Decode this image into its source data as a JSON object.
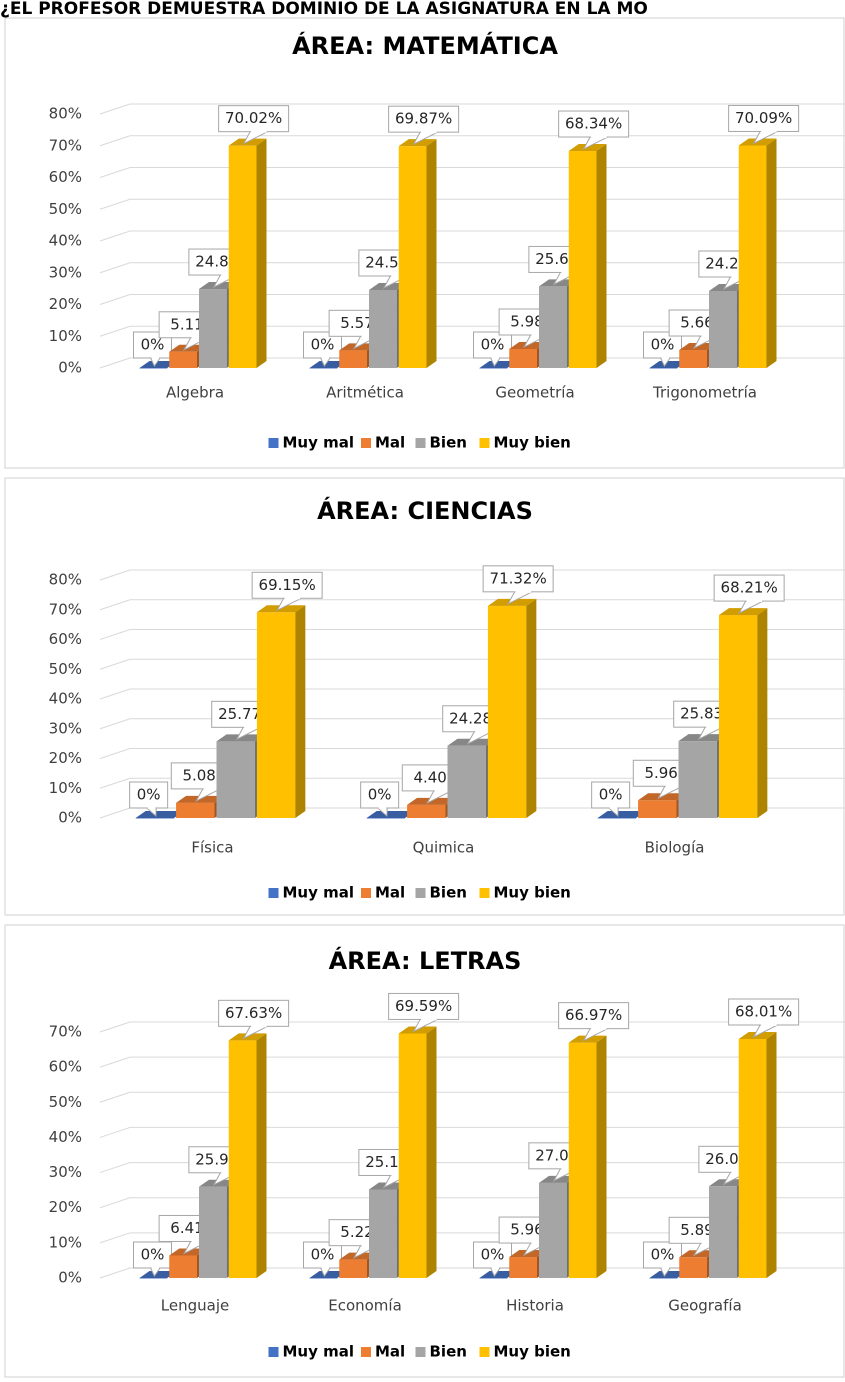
{
  "header": "¿EL PROFESOR DEMUESTRA DOMINIO DE LA ASIGNATURA EN LA MO",
  "chart_data": [
    {
      "type": "bar",
      "title": "ÁREA: MATEMÁTICA",
      "categories": [
        "Algebra",
        "Aritmética",
        "Geometría",
        "Trigonometría"
      ],
      "series": [
        {
          "name": "Muy mal",
          "color": "#4472c4",
          "values": [
            0,
            0,
            0,
            0
          ],
          "value_labels": [
            "0%",
            "0%",
            "0%",
            "0%"
          ]
        },
        {
          "name": "Mal",
          "color": "#ed7d31",
          "values": [
            5.11,
            5.57,
            5.98,
            5.66
          ],
          "value_labels": [
            "5.11%",
            "5.57%",
            "5.98%",
            "5.66%"
          ]
        },
        {
          "name": "Bien",
          "color": "#a5a5a5",
          "values": [
            24.87,
            24.57,
            25.69,
            24.25
          ],
          "value_labels": [
            "24.87%",
            "24.57%",
            "25.69%",
            "24.25%"
          ]
        },
        {
          "name": "Muy bien",
          "color": "#ffc000",
          "values": [
            70.02,
            69.87,
            68.34,
            70.09
          ],
          "value_labels": [
            "70.02%",
            "69.87%",
            "68.34%",
            "70.09%"
          ]
        }
      ],
      "ylim": [
        0,
        80
      ],
      "yticks": [
        {
          "value": 0,
          "label": "0%"
        },
        {
          "value": 10,
          "label": "10%"
        },
        {
          "value": 20,
          "label": "20%"
        },
        {
          "value": 30,
          "label": "30%"
        },
        {
          "value": 40,
          "label": "40%"
        },
        {
          "value": 50,
          "label": "50%"
        },
        {
          "value": 60,
          "label": "60%"
        },
        {
          "value": 70,
          "label": "70%"
        },
        {
          "value": 80,
          "label": "80%"
        }
      ],
      "grid": true,
      "legend": "bottom"
    },
    {
      "type": "bar",
      "title": "ÁREA: CIENCIAS",
      "categories": [
        "Física",
        "Quimica",
        "Biología"
      ],
      "series": [
        {
          "name": "Muy mal",
          "color": "#4472c4",
          "values": [
            0,
            0,
            0
          ],
          "value_labels": [
            "0%",
            "0%",
            "0%"
          ]
        },
        {
          "name": "Mal",
          "color": "#ed7d31",
          "values": [
            5.08,
            4.4,
            5.96
          ],
          "value_labels": [
            "5.08%",
            "4.40%",
            "5.96%"
          ]
        },
        {
          "name": "Bien",
          "color": "#a5a5a5",
          "values": [
            25.77,
            24.28,
            25.83
          ],
          "value_labels": [
            "25.77%",
            "24.28%",
            "25.83%"
          ]
        },
        {
          "name": "Muy bien",
          "color": "#ffc000",
          "values": [
            69.15,
            71.32,
            68.21
          ],
          "value_labels": [
            "69.15%",
            "71.32%",
            "68.21%"
          ]
        }
      ],
      "ylim": [
        0,
        80
      ],
      "yticks": [
        {
          "value": 0,
          "label": "0%"
        },
        {
          "value": 10,
          "label": "10%"
        },
        {
          "value": 20,
          "label": "20%"
        },
        {
          "value": 30,
          "label": "30%"
        },
        {
          "value": 40,
          "label": "40%"
        },
        {
          "value": 50,
          "label": "50%"
        },
        {
          "value": 60,
          "label": "60%"
        },
        {
          "value": 70,
          "label": "70%"
        },
        {
          "value": 80,
          "label": "80%"
        }
      ],
      "grid": true,
      "legend": "bottom"
    },
    {
      "type": "bar",
      "title": "ÁREA: LETRAS",
      "categories": [
        "Lenguaje",
        "Economía",
        "Historia",
        "Geografía"
      ],
      "series": [
        {
          "name": "Muy mal",
          "color": "#4472c4",
          "values": [
            0,
            0,
            0,
            0
          ],
          "value_labels": [
            "0%",
            "0%",
            "0%",
            "0%"
          ]
        },
        {
          "name": "Mal",
          "color": "#ed7d31",
          "values": [
            6.41,
            5.22,
            5.96,
            5.89
          ],
          "value_labels": [
            "6.41%",
            "5.22%",
            "5.96%",
            "5.89%"
          ]
        },
        {
          "name": "Bien",
          "color": "#a5a5a5",
          "values": [
            25.96,
            25.19,
            27.08,
            26.09
          ],
          "value_labels": [
            "25.96%",
            "25.19%",
            "27.08%",
            "26.09%"
          ]
        },
        {
          "name": "Muy bien",
          "color": "#ffc000",
          "values": [
            67.63,
            69.59,
            66.97,
            68.01
          ],
          "value_labels": [
            "67.63%",
            "69.59%",
            "66.97%",
            "68.01%"
          ]
        }
      ],
      "ylim": [
        0,
        70
      ],
      "yticks": [
        {
          "value": 0,
          "label": "0%"
        },
        {
          "value": 10,
          "label": "10%"
        },
        {
          "value": 20,
          "label": "20%"
        },
        {
          "value": 30,
          "label": "30%"
        },
        {
          "value": 40,
          "label": "40%"
        },
        {
          "value": 50,
          "label": "50%"
        },
        {
          "value": 60,
          "label": "60%"
        },
        {
          "value": 70,
          "label": "70%"
        }
      ],
      "grid": true,
      "legend": "bottom"
    }
  ]
}
